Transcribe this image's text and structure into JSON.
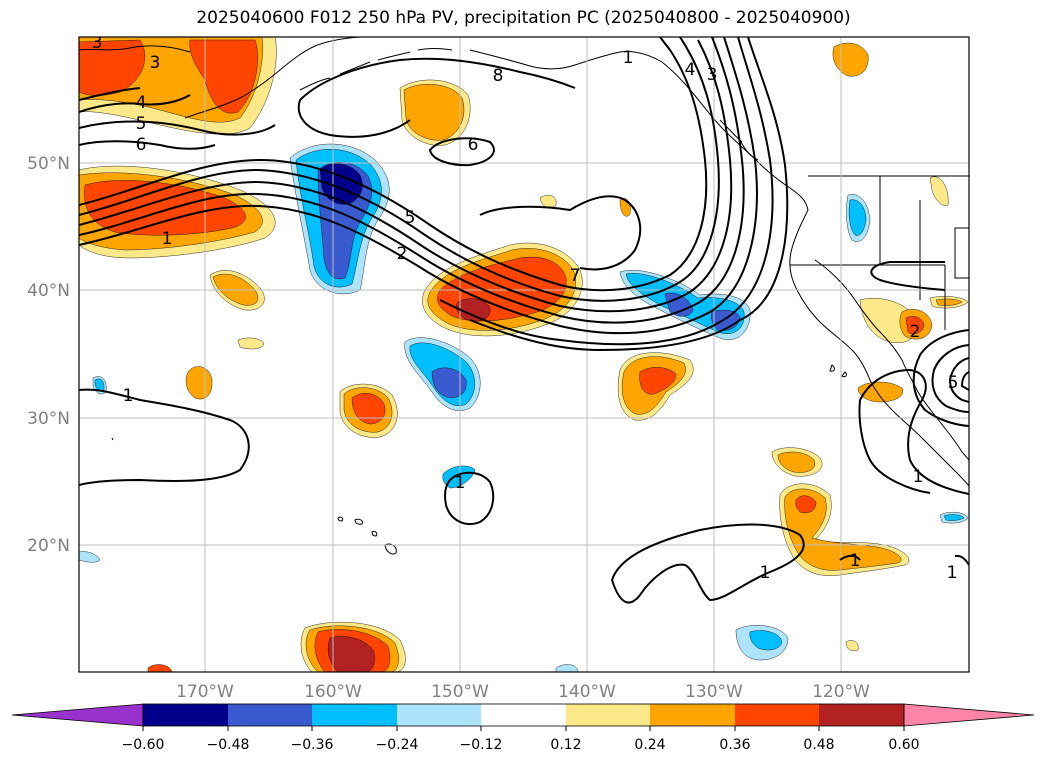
{
  "title": "2025040600 F012 250 hPa PV, precipitation PC (2025040800 - 2025040900)",
  "colors": {
    "pos_012": "#fde98a",
    "pos_024": "#ffa500",
    "pos_036": "#ff4500",
    "pos_048": "#b22222",
    "pos_060": "#ff85a8",
    "neg_012": "#ade3fb",
    "neg_024": "#00bfff",
    "neg_036": "#3a5bd0",
    "neg_048": "#00008b",
    "neg_060": "#9932cc",
    "contour": "#000000",
    "grid": "#bfbfbf",
    "tick_label": "#808080"
  },
  "map": {
    "lon_labels": [
      "170°W",
      "160°W",
      "150°W",
      "140°W",
      "130°W",
      "120°W"
    ],
    "lat_labels": [
      "50°N",
      "40°N",
      "30°N",
      "20°N"
    ]
  },
  "colorbar": {
    "tick_labels": [
      "−0.60",
      "−0.48",
      "−0.36",
      "−0.24",
      "−0.12",
      "0.12",
      "0.24",
      "0.36",
      "0.48",
      "0.60"
    ]
  },
  "contour_labels": [
    "3",
    "3",
    "4",
    "5",
    "6",
    "8",
    "6",
    "1",
    "5",
    "2",
    "7",
    "4",
    "3",
    "1",
    "1",
    "1",
    "1",
    "5",
    "2",
    "1",
    "1",
    "1"
  ]
}
